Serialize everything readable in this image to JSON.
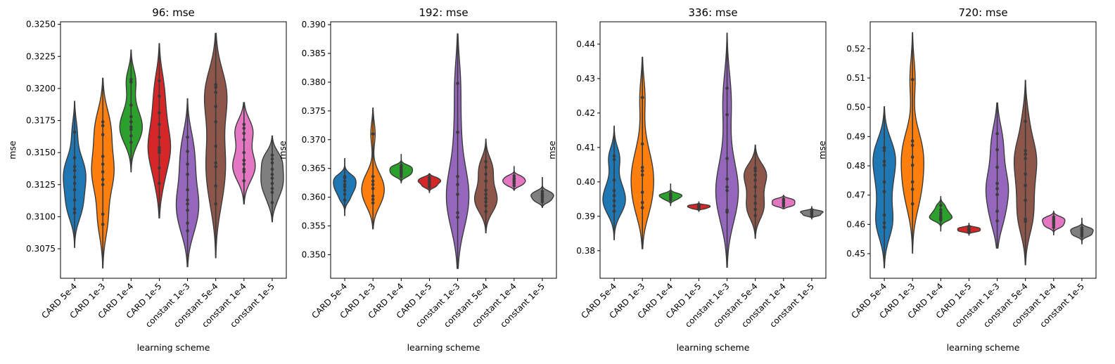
{
  "chart_data": [
    {
      "type": "violin",
      "title": "96: mse",
      "xlabel": "learning scheme",
      "ylabel": "mse",
      "ylim": [
        0.3052,
        0.3252
      ],
      "yticks": [
        0.3075,
        0.31,
        0.3125,
        0.315,
        0.3175,
        0.32,
        0.3225,
        0.325
      ],
      "ytick_labels": [
        "0.3075",
        "0.3100",
        "0.3125",
        "0.3150",
        "0.3175",
        "0.3200",
        "0.3225",
        "0.3250"
      ],
      "categories": [
        "CARD 5e-4",
        "CARD 1e-3",
        "CARD 1e-4",
        "CARD 1e-5",
        "constant 1e-3",
        "constant 5e-4",
        "constant 1e-4",
        "constant 1e-5"
      ],
      "series": [
        {
          "name": "CARD 5e-4",
          "points": [
            0.3103,
            0.3106,
            0.3113,
            0.3121,
            0.3126,
            0.3131,
            0.3136,
            0.3139,
            0.3146,
            0.3166
          ],
          "range": [
            0.3076,
            0.319
          ]
        },
        {
          "name": "CARD 1e-3",
          "points": [
            0.3094,
            0.3102,
            0.3125,
            0.3129,
            0.3135,
            0.3141,
            0.3147,
            0.3164,
            0.3171,
            0.3174
          ],
          "range": [
            0.306,
            0.3208
          ]
        },
        {
          "name": "CARD 1e-4",
          "points": [
            0.3158,
            0.3163,
            0.3168,
            0.317,
            0.3174,
            0.3178,
            0.3187,
            0.3205,
            0.3207
          ],
          "range": [
            0.3135,
            0.323
          ]
        },
        {
          "name": "CARD 1e-5",
          "points": [
            0.3126,
            0.3138,
            0.315,
            0.3152,
            0.3154,
            0.3162,
            0.3172,
            0.3181,
            0.3194,
            0.3206
          ],
          "range": [
            0.3099,
            0.3235
          ]
        },
        {
          "name": "constant 1e-3",
          "points": [
            0.3089,
            0.3095,
            0.3105,
            0.311,
            0.3113,
            0.3121,
            0.3133,
            0.3141,
            0.3151,
            0.3162
          ],
          "range": [
            0.3061,
            0.3192
          ]
        },
        {
          "name": "constant 5e-4",
          "points": [
            0.311,
            0.3124,
            0.3139,
            0.3142,
            0.3155,
            0.3174,
            0.3186,
            0.3197,
            0.3201,
            0.3203
          ],
          "range": [
            0.3068,
            0.3243
          ]
        },
        {
          "name": "constant 1e-4",
          "points": [
            0.3128,
            0.3135,
            0.3137,
            0.3141,
            0.3144,
            0.315,
            0.316,
            0.3165,
            0.3169,
            0.3172
          ],
          "range": [
            0.311,
            0.3189
          ]
        },
        {
          "name": "constant 1e-5",
          "points": [
            0.3111,
            0.3119,
            0.3122,
            0.3126,
            0.313,
            0.3133,
            0.3137,
            0.3142,
            0.3145,
            0.3148
          ],
          "range": [
            0.3096,
            0.3163
          ]
        }
      ]
    },
    {
      "type": "violin",
      "title": "192: mse",
      "xlabel": "learning scheme",
      "ylabel": "mse",
      "ylim": [
        0.3459,
        0.3905
      ],
      "yticks": [
        0.35,
        0.355,
        0.36,
        0.365,
        0.37,
        0.375,
        0.38,
        0.385,
        0.39
      ],
      "ytick_labels": [
        "0.350",
        "0.355",
        "0.360",
        "0.365",
        "0.370",
        "0.375",
        "0.380",
        "0.385",
        "0.390"
      ],
      "categories": [
        "CARD 5e-4",
        "CARD 1e-3",
        "CARD 1e-4",
        "CARD 1e-5",
        "constant 1e-3",
        "constant 5e-4",
        "constant 1e-4",
        "constant 1e-5"
      ],
      "series": [
        {
          "name": "CARD 5e-4",
          "points": [
            0.3595,
            0.3605,
            0.3612,
            0.3618,
            0.3622,
            0.3628,
            0.3634,
            0.3636
          ],
          "range": [
            0.3568,
            0.3668
          ]
        },
        {
          "name": "CARD 1e-3",
          "points": [
            0.359,
            0.3596,
            0.3602,
            0.3615,
            0.3622,
            0.3628,
            0.3636,
            0.371
          ],
          "range": [
            0.3545,
            0.3755
          ]
        },
        {
          "name": "CARD 1e-4",
          "points": [
            0.3636,
            0.364,
            0.3643,
            0.3646,
            0.3649,
            0.3652,
            0.3655
          ],
          "range": [
            0.3625,
            0.3675
          ]
        },
        {
          "name": "CARD 1e-5",
          "points": [
            0.3618,
            0.3622,
            0.3626,
            0.3628,
            0.3631,
            0.3634
          ],
          "range": [
            0.3608,
            0.3641
          ]
        },
        {
          "name": "constant 1e-3",
          "points": [
            0.3565,
            0.3573,
            0.3605,
            0.3622,
            0.3636,
            0.3713,
            0.3798
          ],
          "range": [
            0.3476,
            0.3884
          ]
        },
        {
          "name": "constant 5e-4",
          "points": [
            0.3575,
            0.3585,
            0.3592,
            0.3598,
            0.3605,
            0.3612,
            0.3628,
            0.364,
            0.3652,
            0.3662
          ],
          "range": [
            0.3538,
            0.3701
          ]
        },
        {
          "name": "constant 1e-4",
          "points": [
            0.362,
            0.3624,
            0.3627,
            0.363,
            0.3633,
            0.3637
          ],
          "range": [
            0.3612,
            0.3654
          ]
        },
        {
          "name": "constant 1e-5",
          "points": [
            0.3592,
            0.3596,
            0.36,
            0.3603,
            0.3606,
            0.361
          ],
          "range": [
            0.3582,
            0.3635
          ]
        }
      ]
    },
    {
      "type": "violin",
      "title": "336: mse",
      "xlabel": "learning scheme",
      "ylabel": "mse",
      "ylim": [
        0.372,
        0.4465
      ],
      "yticks": [
        0.38,
        0.39,
        0.4,
        0.41,
        0.42,
        0.43,
        0.44
      ],
      "ytick_labels": [
        "0.38",
        "0.39",
        "0.40",
        "0.41",
        "0.42",
        "0.43",
        "0.44"
      ],
      "categories": [
        "CARD 5e-4",
        "CARD 1e-3",
        "CARD 1e-4",
        "CARD 1e-5",
        "constant 1e-3",
        "constant 5e-4",
        "constant 1e-4",
        "constant 1e-5"
      ],
      "series": [
        {
          "name": "CARD 5e-4",
          "points": [
            0.3915,
            0.393,
            0.3945,
            0.396,
            0.3975,
            0.4005,
            0.4065,
            0.4075
          ],
          "range": [
            0.3832,
            0.4162
          ]
        },
        {
          "name": "CARD 1e-3",
          "points": [
            0.3925,
            0.394,
            0.397,
            0.402,
            0.4032,
            0.4042,
            0.411,
            0.4245
          ],
          "range": [
            0.3806,
            0.4362
          ]
        },
        {
          "name": "CARD 1e-4",
          "points": [
            0.3948,
            0.3953,
            0.3957,
            0.396,
            0.3963,
            0.3966
          ],
          "range": [
            0.393,
            0.3995
          ]
        },
        {
          "name": "CARD 1e-5",
          "points": [
            0.3922,
            0.3925,
            0.3927,
            0.3929,
            0.3931,
            0.3933
          ],
          "range": [
            0.3914,
            0.3943
          ]
        },
        {
          "name": "constant 1e-3",
          "points": [
            0.3912,
            0.3918,
            0.3975,
            0.3985,
            0.4008,
            0.4068,
            0.4195,
            0.4272
          ],
          "range": [
            0.3752,
            0.4432
          ]
        },
        {
          "name": "constant 5e-4",
          "points": [
            0.3902,
            0.392,
            0.3938,
            0.3958,
            0.3985,
            0.4005,
            0.402,
            0.4032,
            0.404
          ],
          "range": [
            0.3836,
            0.4107
          ]
        },
        {
          "name": "constant 1e-4",
          "points": [
            0.393,
            0.3935,
            0.394,
            0.3945,
            0.395
          ],
          "range": [
            0.3922,
            0.3961
          ]
        },
        {
          "name": "constant 1e-5",
          "points": [
            0.3902,
            0.3906,
            0.391,
            0.3913,
            0.3916
          ],
          "range": [
            0.3892,
            0.3929
          ]
        }
      ]
    },
    {
      "type": "violin",
      "title": "720: mse",
      "xlabel": "learning scheme",
      "ylabel": "mse",
      "ylim": [
        0.4416,
        0.5292
      ],
      "yticks": [
        0.45,
        0.46,
        0.47,
        0.48,
        0.49,
        0.5,
        0.51,
        0.52
      ],
      "ytick_labels": [
        "0.45",
        "0.46",
        "0.47",
        "0.48",
        "0.49",
        "0.50",
        "0.51",
        "0.52"
      ],
      "categories": [
        "CARD 5e-4",
        "CARD 1e-3",
        "CARD 1e-4",
        "CARD 1e-5",
        "constant 1e-3",
        "constant 5e-4",
        "constant 1e-4",
        "constant 1e-5"
      ],
      "series": [
        {
          "name": "CARD 5e-4",
          "points": [
            0.459,
            0.4605,
            0.4632,
            0.4712,
            0.4745,
            0.4802,
            0.4815,
            0.4852,
            0.4862
          ],
          "range": [
            0.4452,
            0.5002
          ]
        },
        {
          "name": "CARD 1e-3",
          "points": [
            0.467,
            0.472,
            0.4745,
            0.4802,
            0.483,
            0.487,
            0.4885,
            0.5095
          ],
          "range": [
            0.4502,
            0.5255
          ]
        },
        {
          "name": "CARD 1e-4",
          "points": [
            0.4615,
            0.462,
            0.4625,
            0.4632,
            0.464,
            0.465,
            0.4665
          ],
          "range": [
            0.4576,
            0.4695
          ]
        },
        {
          "name": "CARD 1e-5",
          "points": [
            0.4575,
            0.4578,
            0.4581,
            0.4584,
            0.4587,
            0.459
          ],
          "range": [
            0.4562,
            0.4605
          ]
        },
        {
          "name": "constant 1e-3",
          "points": [
            0.4612,
            0.4645,
            0.4702,
            0.4722,
            0.474,
            0.4795,
            0.4855,
            0.491
          ],
          "range": [
            0.4519,
            0.5015
          ]
        },
        {
          "name": "constant 5e-4",
          "points": [
            0.461,
            0.4618,
            0.4682,
            0.4733,
            0.4772,
            0.4825,
            0.484,
            0.4852,
            0.4952
          ],
          "range": [
            0.4462,
            0.5092
          ]
        },
        {
          "name": "constant 1e-4",
          "points": [
            0.459,
            0.4598,
            0.4605,
            0.4612,
            0.4618,
            0.4625
          ],
          "range": [
            0.4563,
            0.4645
          ]
        },
        {
          "name": "constant 1e-5",
          "points": [
            0.456,
            0.4566,
            0.4572,
            0.4578,
            0.4583,
            0.4588
          ],
          "range": [
            0.4532,
            0.4622
          ]
        }
      ]
    }
  ],
  "colors": {
    "palette": [
      "#1f77b4",
      "#ff7f0e",
      "#2ca02c",
      "#d62728",
      "#9467bd",
      "#8c564b",
      "#e377c2",
      "#7f7f7f"
    ],
    "edge": "#3b3b3b",
    "point": "#3b3b3b"
  }
}
